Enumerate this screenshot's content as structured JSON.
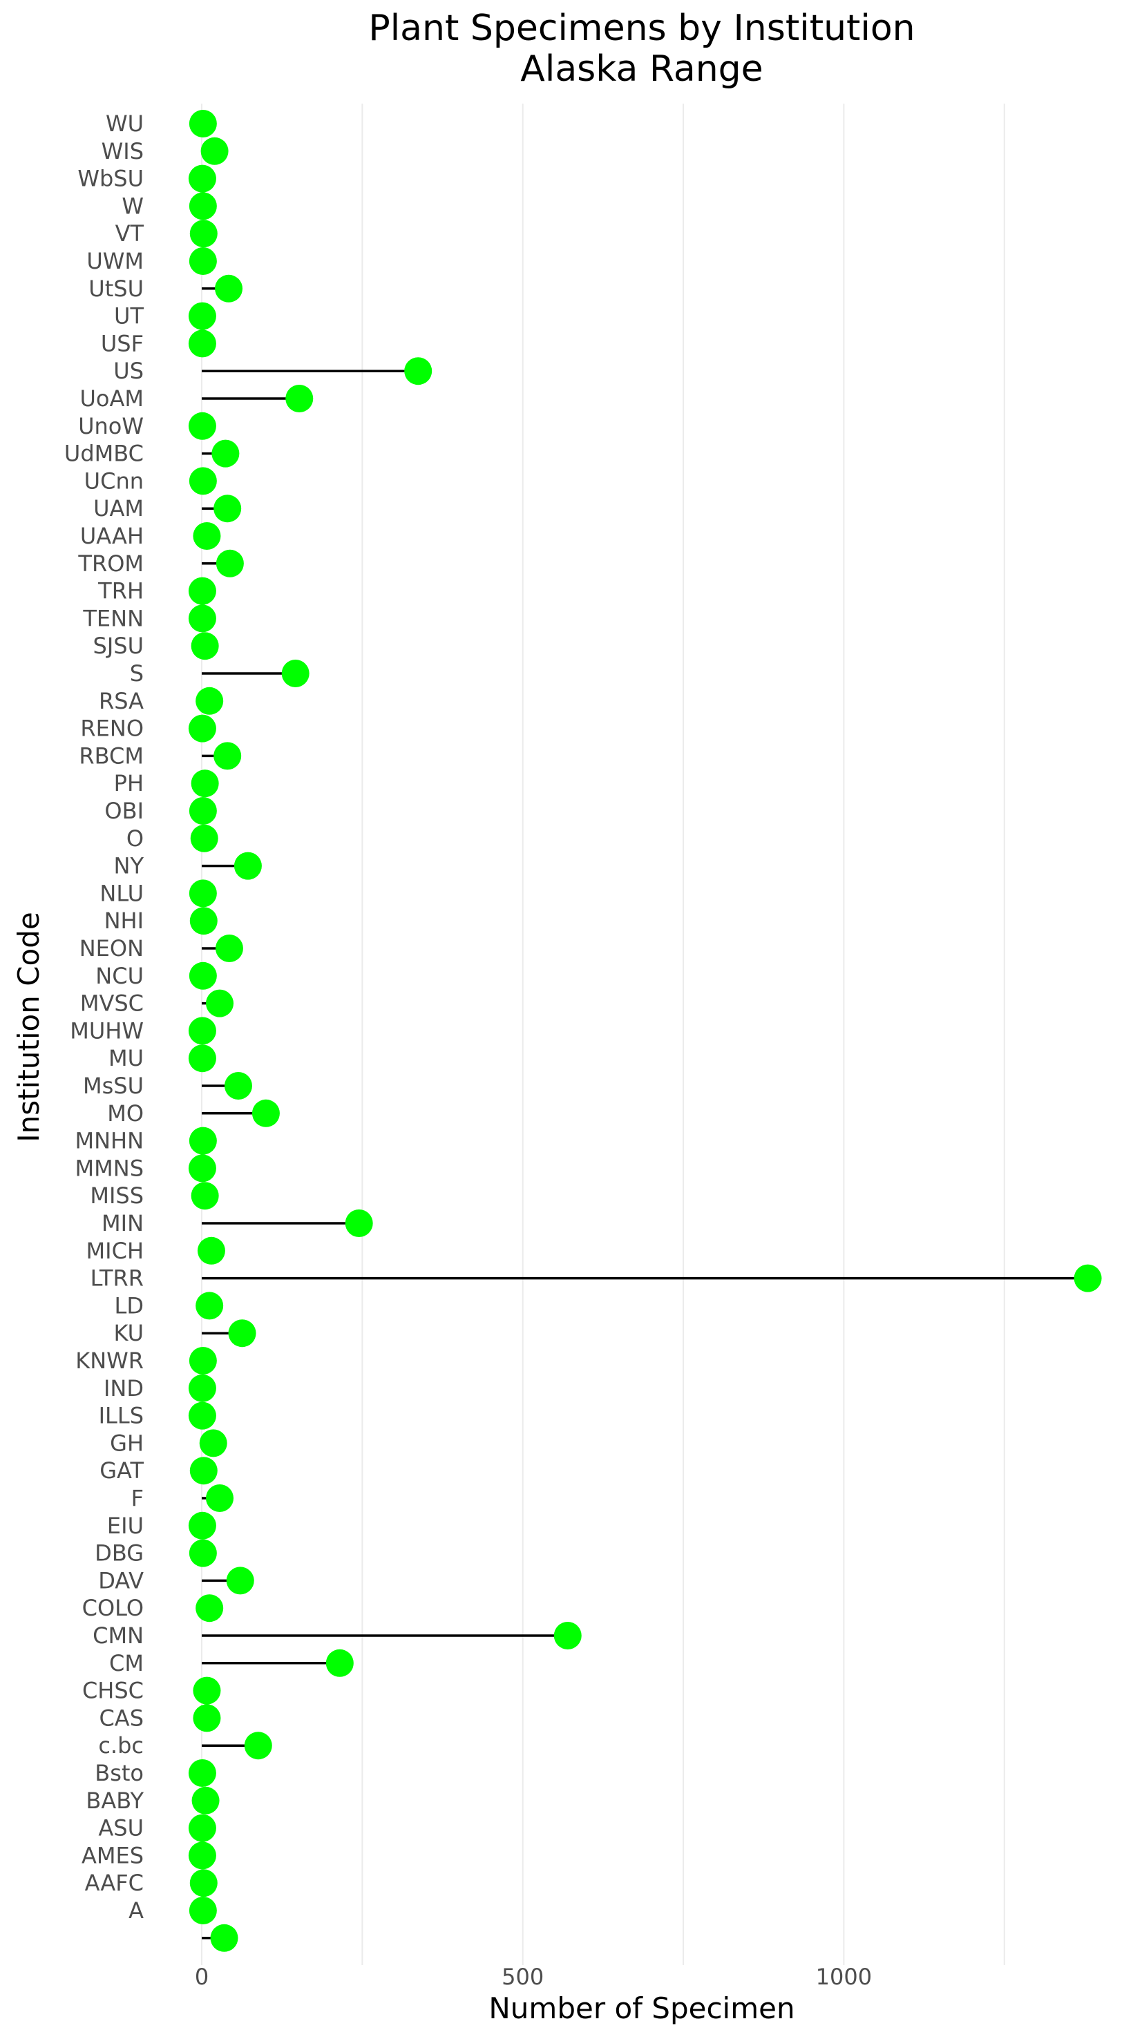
{
  "chart_data": {
    "type": "lollipop",
    "orientation": "horizontal",
    "title": [
      "Plant Specimens by Institution",
      "Alaska Range"
    ],
    "xlabel": "Number of Specimen",
    "ylabel": "Institution Code",
    "xlim": [
      -5,
      1390
    ],
    "xticks": [
      0,
      500,
      1000
    ],
    "minor_xticks": [
      250,
      750,
      1250
    ],
    "grid": "vertical-only",
    "point_color": "#00ff00",
    "stem_color": "#000000",
    "categories": [
      "WU",
      "WIS",
      "WbSU",
      "W",
      "VT",
      "UWM",
      "UtSU",
      "UT",
      "USF",
      "US",
      "UoAM",
      "UnoW",
      "UdMBC",
      "UCnn",
      "UAM",
      "UAAH",
      "TROM",
      "TRH",
      "TENN",
      "SJSU",
      "S",
      "RSA",
      "RENO",
      "RBCM",
      "PH",
      "OBI",
      "O",
      "NY",
      "NLU",
      "NHI",
      "NEON",
      "NCU",
      "MVSC",
      "MUHW",
      "MU",
      "MsSU",
      "MO",
      "MNHN",
      "MMNS",
      "MISS",
      "MIN",
      "MICH",
      "LTRR",
      "LD",
      "KU",
      "KNWR",
      "IND",
      "ILLS",
      "GH",
      "GAT",
      "F",
      "EIU",
      "DBG",
      "DAV",
      "COLO",
      "CMN",
      "CM",
      "CHSC",
      "CAS",
      "c.bc",
      "Bsto",
      "BABY",
      "ASU",
      "AMES",
      "AAFC",
      "A",
      ""
    ],
    "values": [
      2,
      20,
      1,
      2,
      3,
      2,
      42,
      1,
      1,
      337,
      152,
      1,
      37,
      2,
      40,
      8,
      44,
      1,
      1,
      5,
      146,
      12,
      1,
      40,
      5,
      2,
      4,
      72,
      2,
      3,
      43,
      2,
      28,
      1,
      1,
      57,
      100,
      2,
      1,
      5,
      245,
      15,
      1380,
      12,
      63,
      2,
      1,
      1,
      18,
      3,
      28,
      1,
      2,
      60,
      12,
      570,
      215,
      8,
      8,
      88,
      1,
      6,
      1,
      1,
      3,
      2,
      35
    ]
  }
}
